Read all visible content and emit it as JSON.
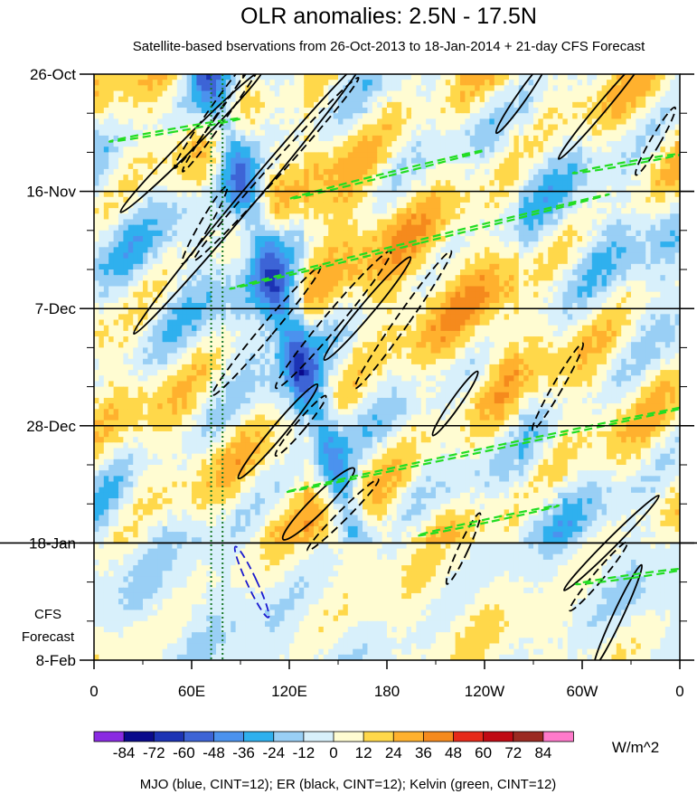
{
  "chart_data": {
    "type": "heatmap",
    "title": "OLR anomalies: 2.5N - 17.5N",
    "subtitle": "Satellite-based bservations from 26-Oct-2013 to 18-Jan-2014 + 21-day CFS Forecast",
    "x_ticks": [
      "0",
      "60E",
      "120E",
      "180",
      "120W",
      "60W",
      "0"
    ],
    "x_tick_lon": [
      0,
      60,
      120,
      180,
      240,
      300,
      360
    ],
    "y_ticks": [
      "26-Oct",
      "16-Nov",
      "7-Dec",
      "28-Dec",
      "18-Jan",
      "8-Feb"
    ],
    "y_tick_day": [
      0,
      21,
      42,
      63,
      84,
      105
    ],
    "forecast_label_lines": [
      "CFS",
      "Forecast"
    ],
    "observation_end_day": 84,
    "units": "W/m^2",
    "colorbar_labels": [
      "-84",
      "-72",
      "-60",
      "-48",
      "-36",
      "-24",
      "-12",
      "0",
      "12",
      "24",
      "36",
      "48",
      "60",
      "72",
      "84"
    ],
    "colorbar_colors": [
      "#8a2be2",
      "#0a0a8c",
      "#1c33b4",
      "#3d64d6",
      "#4b92ee",
      "#2fb0ee",
      "#99cff5",
      "#d8f0fb",
      "#fffcd2",
      "#ffd84a",
      "#ffb12e",
      "#f58a1d",
      "#e62a1a",
      "#c00a14",
      "#9b2a22",
      "#ff7acb"
    ],
    "footer": "MJO (blue, CINT=12); ER (black, CINT=12); Kelvin (green, CINT=12)",
    "vertical_lines_lon": [
      72,
      79
    ],
    "filtered_contours": [
      {
        "type": "MJO",
        "color": "#1a1ad0",
        "sign": "negative",
        "cx": 97,
        "cy": 91,
        "rx": 3,
        "ry": 7,
        "tilt": -25
      },
      {
        "type": "ER",
        "color": "#000000",
        "sign": "positive",
        "cx": 60,
        "cy": 12,
        "rx": 4,
        "ry": 18,
        "tilt": 45
      },
      {
        "type": "ER",
        "color": "#000000",
        "sign": "negative",
        "cx": 73,
        "cy": 7,
        "rx": 3,
        "ry": 12,
        "tilt": 35
      },
      {
        "type": "ER",
        "color": "#000000",
        "sign": "negative",
        "cx": 82,
        "cy": 6,
        "rx": 3,
        "ry": 14,
        "tilt": 35
      },
      {
        "type": "ER",
        "color": "#000000",
        "sign": "positive",
        "cx": 95,
        "cy": 22,
        "rx": 5,
        "ry": 32,
        "tilt": 40
      },
      {
        "type": "ER",
        "color": "#000000",
        "sign": "negative",
        "cx": 112,
        "cy": 17,
        "rx": 4,
        "ry": 22,
        "tilt": 42
      },
      {
        "type": "ER",
        "color": "#000000",
        "sign": "negative",
        "cx": 68,
        "cy": 27,
        "rx": 3,
        "ry": 8,
        "tilt": 30
      },
      {
        "type": "ER",
        "color": "#000000",
        "sign": "negative",
        "cx": 106,
        "cy": 46,
        "rx": 4,
        "ry": 15,
        "tilt": 40
      },
      {
        "type": "ER",
        "color": "#000000",
        "sign": "negative",
        "cx": 147,
        "cy": 44,
        "rx": 5,
        "ry": 16,
        "tilt": 40
      },
      {
        "type": "ER",
        "color": "#000000",
        "sign": "positive",
        "cx": 168,
        "cy": 42,
        "rx": 4,
        "ry": 12,
        "tilt": 40
      },
      {
        "type": "ER",
        "color": "#000000",
        "sign": "negative",
        "cx": 190,
        "cy": 44,
        "rx": 4,
        "ry": 15,
        "tilt": 35
      },
      {
        "type": "ER",
        "color": "#000000",
        "sign": "positive",
        "cx": 113,
        "cy": 64,
        "rx": 4,
        "ry": 11,
        "tilt": 40
      },
      {
        "type": "ER",
        "color": "#000000",
        "sign": "negative",
        "cx": 127,
        "cy": 63,
        "rx": 3,
        "ry": 7,
        "tilt": 40
      },
      {
        "type": "ER",
        "color": "#000000",
        "sign": "positive",
        "cx": 138,
        "cy": 77,
        "rx": 5,
        "ry": 9,
        "tilt": 45
      },
      {
        "type": "ER",
        "color": "#000000",
        "sign": "negative",
        "cx": 153,
        "cy": 79,
        "rx": 3,
        "ry": 9,
        "tilt": 45
      },
      {
        "type": "ER",
        "color": "#000000",
        "sign": "positive",
        "cx": 222,
        "cy": 59,
        "rx": 3,
        "ry": 7,
        "tilt": 35
      },
      {
        "type": "ER",
        "color": "#000000",
        "sign": "negative",
        "cx": 285,
        "cy": 56,
        "rx": 3,
        "ry": 9,
        "tilt": 30
      },
      {
        "type": "ER",
        "color": "#000000",
        "sign": "negative",
        "cx": 227,
        "cy": 85,
        "rx": 3,
        "ry": 7,
        "tilt": 25
      },
      {
        "type": "ER",
        "color": "#000000",
        "sign": "positive",
        "cx": 318,
        "cy": 84,
        "rx": 3,
        "ry": 12,
        "tilt": 45
      },
      {
        "type": "ER",
        "color": "#000000",
        "sign": "negative",
        "cx": 310,
        "cy": 90,
        "rx": 3,
        "ry": 8,
        "tilt": 40
      },
      {
        "type": "ER",
        "color": "#000000",
        "sign": "positive",
        "cx": 322,
        "cy": 97,
        "rx": 3,
        "ry": 10,
        "tilt": 25
      },
      {
        "type": "ER",
        "color": "#000000",
        "sign": "positive",
        "cx": 263,
        "cy": 4,
        "rx": 3,
        "ry": 8,
        "tilt": 35
      },
      {
        "type": "ER",
        "color": "#000000",
        "sign": "positive",
        "cx": 312,
        "cy": 6,
        "rx": 3,
        "ry": 12,
        "tilt": 40
      },
      {
        "type": "ER",
        "color": "#000000",
        "sign": "negative",
        "cx": 345,
        "cy": 12,
        "rx": 3,
        "ry": 7,
        "tilt": 30
      },
      {
        "type": "Kelvin",
        "color": "#22dd22",
        "sign": "negative",
        "cx": 200,
        "cy": 30,
        "rx": 1,
        "ry": 35,
        "tilt": 76
      },
      {
        "type": "Kelvin",
        "color": "#22dd22",
        "sign": "negative",
        "cx": 180,
        "cy": 18,
        "rx": 1,
        "ry": 18,
        "tilt": 76
      },
      {
        "type": "Kelvin",
        "color": "#22dd22",
        "sign": "negative",
        "cx": 245,
        "cy": 67,
        "rx": 1,
        "ry": 38,
        "tilt": 78
      },
      {
        "type": "Kelvin",
        "color": "#22dd22",
        "sign": "negative",
        "cx": 242,
        "cy": 80,
        "rx": 1,
        "ry": 13,
        "tilt": 78
      },
      {
        "type": "Kelvin",
        "color": "#22dd22",
        "sign": "negative",
        "cx": 50,
        "cy": 10,
        "rx": 1,
        "ry": 12,
        "tilt": 80
      },
      {
        "type": "Kelvin",
        "color": "#22dd22",
        "sign": "negative",
        "cx": 328,
        "cy": 16,
        "rx": 1,
        "ry": 10,
        "tilt": 80
      },
      {
        "type": "Kelvin",
        "color": "#22dd22",
        "sign": "negative",
        "cx": 330,
        "cy": 90,
        "rx": 1,
        "ry": 10,
        "tilt": 82
      }
    ]
  }
}
